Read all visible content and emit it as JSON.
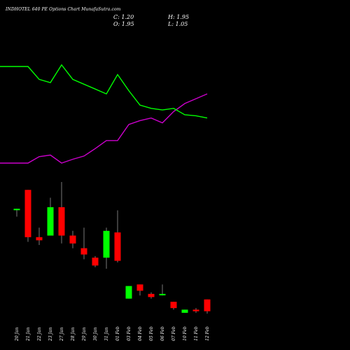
{
  "header": {
    "title": "INDHOTEL 640  PE Options  Chart MunafaSutra.com",
    "close": "C: 1.20",
    "open": "O: 1.95",
    "high": "H: 1.95",
    "low": "L: 1.05"
  },
  "chart_data": {
    "type": "candlestick",
    "categories": [
      "20 Jan",
      "21 Jan",
      "22 Jan",
      "23 Jan",
      "27 Jan",
      "28 Jan",
      "29 Jan",
      "30 Jan",
      "31 Jan",
      "01 Feb",
      "03 Feb",
      "04 Feb",
      "05 Feb",
      "06 Feb",
      "07 Feb",
      "10 Feb",
      "11 Feb",
      "12 Feb"
    ],
    "candles": [
      {
        "o": 7.7,
        "h": 7.7,
        "l": 7.2,
        "c": 7.7,
        "color": "green"
      },
      {
        "o": 8.9,
        "h": 8.9,
        "l": 5.6,
        "c": 5.9,
        "color": "red"
      },
      {
        "o": 5.9,
        "h": 6.5,
        "l": 5.4,
        "c": 5.7,
        "color": "red"
      },
      {
        "o": 6.0,
        "h": 8.4,
        "l": 6.0,
        "c": 7.8,
        "color": "green"
      },
      {
        "o": 7.8,
        "h": 9.4,
        "l": 5.5,
        "c": 6.0,
        "color": "red"
      },
      {
        "o": 6.0,
        "h": 6.3,
        "l": 5.2,
        "c": 5.5,
        "color": "red"
      },
      {
        "o": 5.2,
        "h": 6.5,
        "l": 4.5,
        "c": 4.8,
        "color": "red"
      },
      {
        "o": 4.6,
        "h": 4.7,
        "l": 4.0,
        "c": 4.1,
        "color": "red"
      },
      {
        "o": 4.6,
        "h": 6.5,
        "l": 3.9,
        "c": 6.3,
        "color": "green"
      },
      {
        "o": 6.2,
        "h": 7.6,
        "l": 4.3,
        "c": 4.4,
        "color": "red"
      },
      {
        "o": 2.0,
        "h": 2.8,
        "l": 2.0,
        "c": 2.8,
        "color": "green"
      },
      {
        "o": 2.9,
        "h": 2.9,
        "l": 2.2,
        "c": 2.5,
        "color": "red"
      },
      {
        "o": 2.3,
        "h": 2.4,
        "l": 2.0,
        "c": 2.1,
        "color": "red"
      },
      {
        "o": 2.3,
        "h": 2.9,
        "l": 2.2,
        "c": 2.3,
        "color": "green"
      },
      {
        "o": 1.8,
        "h": 1.8,
        "l": 1.3,
        "c": 1.4,
        "color": "red"
      },
      {
        "o": 1.1,
        "h": 1.3,
        "l": 1.1,
        "c": 1.3,
        "color": "green"
      },
      {
        "o": 1.3,
        "h": 1.4,
        "l": 1.1,
        "c": 1.2,
        "color": "red"
      },
      {
        "o": 1.95,
        "h": 1.95,
        "l": 1.05,
        "c": 1.2,
        "color": "red"
      }
    ],
    "green_line": {
      "values": [
        6.6,
        6.6,
        6.2,
        6.1,
        6.65,
        6.2,
        6.05,
        5.9,
        5.75,
        6.35,
        5.85,
        5.4,
        5.3,
        5.25,
        5.3,
        5.1,
        5.07,
        5.0
      ]
    },
    "purple_line": {
      "values": [
        3.6,
        3.6,
        3.8,
        3.85,
        3.6,
        3.72,
        3.82,
        4.05,
        4.3,
        4.3,
        4.8,
        4.92,
        5.0,
        4.85,
        5.2,
        5.45,
        5.6,
        5.75
      ]
    },
    "colors": {
      "up": "#00ff00",
      "down": "#ff0000",
      "green_line": "#00ff00",
      "purple_line": "#cc00cc",
      "background": "#000000"
    }
  }
}
